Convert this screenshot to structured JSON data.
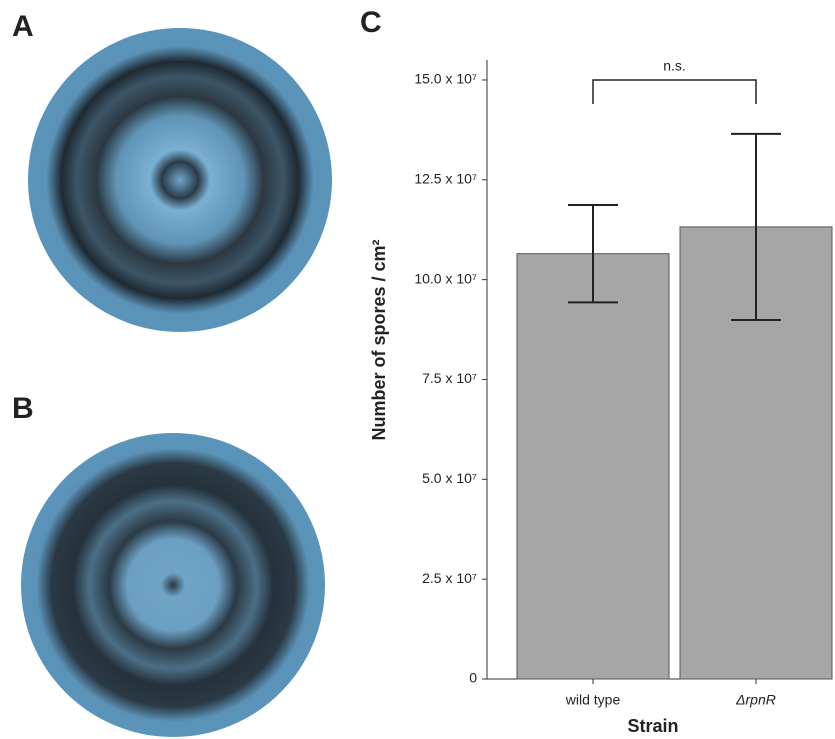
{
  "panels": [
    "A",
    "B",
    "C"
  ],
  "chart_data": {
    "type": "bar",
    "categories": [
      "wild type",
      "ΔrpnR"
    ],
    "values": [
      106500000,
      113200000
    ],
    "errors": [
      12200000,
      23300000
    ],
    "color": "#a6a6a6",
    "xlabel": "Strain",
    "ylabel": "Number of spores / cm²",
    "annotation": "n.s.",
    "ylim": [
      0,
      155000000
    ],
    "yticks": [
      0,
      {
        "value": 25000000,
        "label": "2.5 x 10⁷"
      },
      {
        "value": 50000000,
        "label": "5.0 x 10⁷"
      },
      {
        "value": 75000000,
        "label": "7.5 x 10⁷"
      },
      {
        "value": 100000000,
        "label": "10.0 x 10⁷"
      },
      {
        "value": 125000000,
        "label": "12.5 x 10⁷"
      },
      {
        "value": 150000000,
        "label": "15.0 x 10⁷"
      }
    ]
  }
}
